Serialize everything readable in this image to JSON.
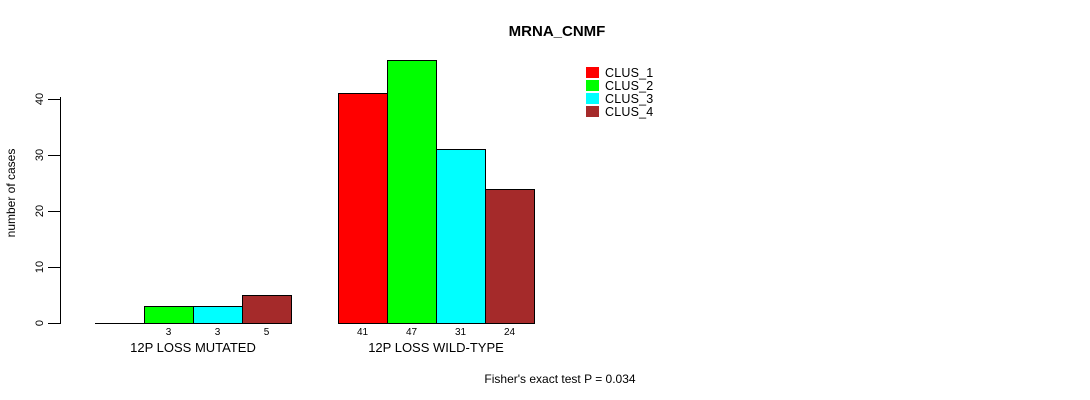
{
  "chart_data": {
    "type": "bar",
    "title": "MRNA_CNMF",
    "ylabel": "number of cases",
    "xlabel": "",
    "ylim": [
      0,
      40
    ],
    "yticks": [
      0,
      10,
      20,
      30,
      40
    ],
    "grid": false,
    "legend_position": "top-right",
    "series_names": [
      "CLUS_1",
      "CLUS_2",
      "CLUS_3",
      "CLUS_4"
    ],
    "series_colors": [
      "#FF0000",
      "#00FF00",
      "#00FFFF",
      "#A52A2A"
    ],
    "groups": [
      {
        "label": "12P LOSS MUTATED",
        "values": [
          0,
          3,
          3,
          5
        ],
        "bar_labels": [
          "",
          "3",
          "3",
          "5"
        ]
      },
      {
        "label": "12P LOSS WILD-TYPE",
        "values": [
          41,
          47,
          31,
          24
        ],
        "bar_labels": [
          "41",
          "47",
          "31",
          "24"
        ]
      }
    ],
    "annotation": "Fisher's exact test P = 0.034"
  }
}
